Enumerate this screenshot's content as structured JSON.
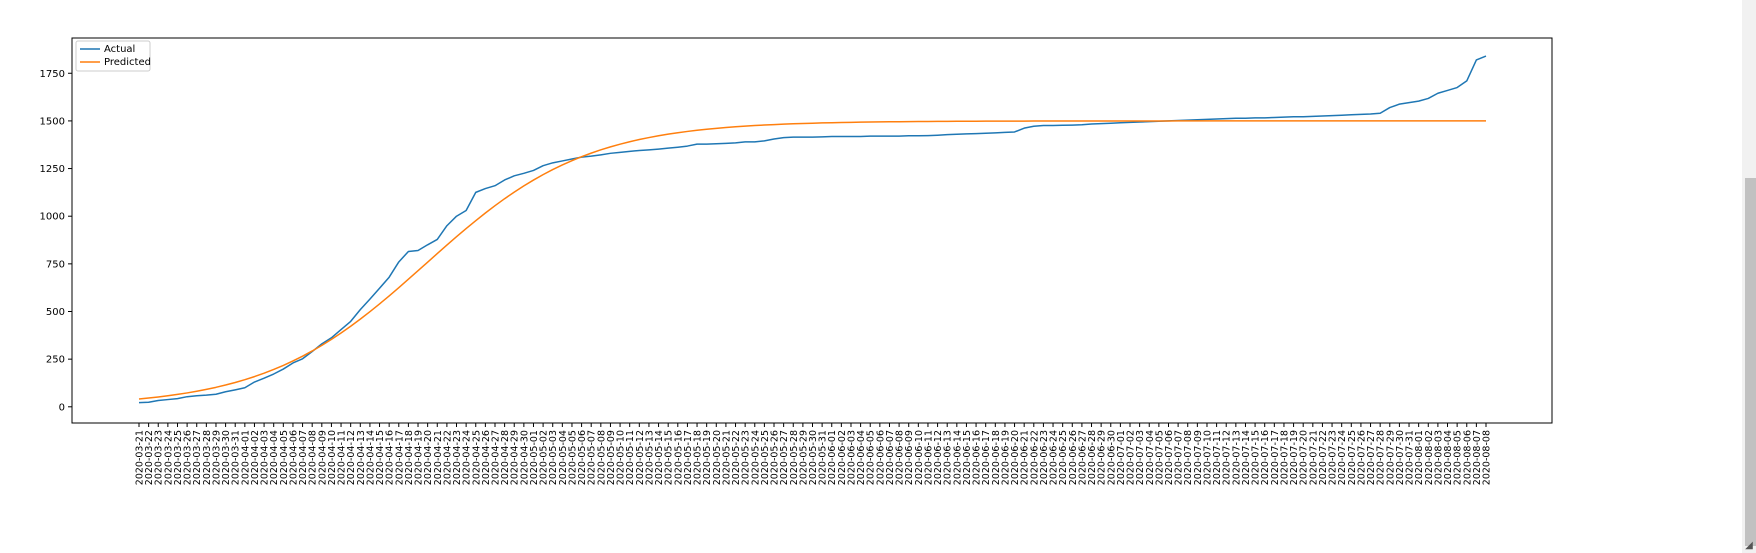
{
  "chart_data": {
    "type": "line",
    "title": "",
    "xlabel": "",
    "ylabel": "",
    "x_start": "2020-03-21",
    "x_end": "2020-08-08",
    "x_tick_labels": [
      "2020-03-21",
      "2020-03-22",
      "2020-03-23",
      "2020-03-24",
      "2020-03-25",
      "2020-03-26",
      "2020-03-27",
      "2020-03-28",
      "2020-03-29",
      "2020-03-30",
      "2020-03-31",
      "2020-04-01",
      "2020-04-02",
      "2020-04-03",
      "2020-04-04",
      "2020-04-05",
      "2020-04-06",
      "2020-04-07",
      "2020-04-08",
      "2020-04-09",
      "2020-04-10",
      "2020-04-11",
      "2020-04-12",
      "2020-04-13",
      "2020-04-14",
      "2020-04-15",
      "2020-04-16",
      "2020-04-17",
      "2020-04-18",
      "2020-04-19",
      "2020-04-20",
      "2020-04-21",
      "2020-04-22",
      "2020-04-23",
      "2020-04-24",
      "2020-04-25",
      "2020-04-26",
      "2020-04-27",
      "2020-04-28",
      "2020-04-29",
      "2020-04-30",
      "2020-05-01",
      "2020-05-02",
      "2020-05-03",
      "2020-05-04",
      "2020-05-05",
      "2020-05-06",
      "2020-05-07",
      "2020-05-08",
      "2020-05-09",
      "2020-05-10",
      "2020-05-11",
      "2020-05-12",
      "2020-05-13",
      "2020-05-14",
      "2020-05-15",
      "2020-05-16",
      "2020-05-17",
      "2020-05-18",
      "2020-05-19",
      "2020-05-20",
      "2020-05-21",
      "2020-05-22",
      "2020-05-23",
      "2020-05-24",
      "2020-05-25",
      "2020-05-26",
      "2020-05-27",
      "2020-05-28",
      "2020-05-29",
      "2020-05-30",
      "2020-05-31",
      "2020-06-01",
      "2020-06-02",
      "2020-06-03",
      "2020-06-04",
      "2020-06-05",
      "2020-06-06",
      "2020-06-07",
      "2020-06-08",
      "2020-06-09",
      "2020-06-10",
      "2020-06-11",
      "2020-06-12",
      "2020-06-13",
      "2020-06-14",
      "2020-06-15",
      "2020-06-16",
      "2020-06-17",
      "2020-06-18",
      "2020-06-19",
      "2020-06-20",
      "2020-06-21",
      "2020-06-22",
      "2020-06-23",
      "2020-06-24",
      "2020-06-25",
      "2020-06-26",
      "2020-06-27",
      "2020-06-28",
      "2020-06-29",
      "2020-06-30",
      "2020-07-01",
      "2020-07-02",
      "2020-07-03",
      "2020-07-04",
      "2020-07-05",
      "2020-07-06",
      "2020-07-07",
      "2020-07-08",
      "2020-07-09",
      "2020-07-10",
      "2020-07-11",
      "2020-07-12",
      "2020-07-13",
      "2020-07-14",
      "2020-07-15",
      "2020-07-16",
      "2020-07-17",
      "2020-07-18",
      "2020-07-19",
      "2020-07-20",
      "2020-07-21",
      "2020-07-22",
      "2020-07-23",
      "2020-07-24",
      "2020-07-25",
      "2020-07-26",
      "2020-07-27",
      "2020-07-28",
      "2020-07-29",
      "2020-07-30",
      "2020-07-31",
      "2020-08-01",
      "2020-08-02",
      "2020-08-03",
      "2020-08-04",
      "2020-08-05",
      "2020-08-06",
      "2020-08-07",
      "2020-08-08"
    ],
    "ylim": [
      -85,
      1935
    ],
    "y_ticks": [
      0,
      250,
      500,
      750,
      1000,
      1250,
      1500,
      1750
    ],
    "grid": false,
    "legend_position": "upper-left",
    "series": [
      {
        "name": "Actual",
        "color": "#1f77b4",
        "values": [
          22,
          24,
          33,
          38,
          43,
          53,
          58,
          61,
          66,
          79,
          89,
          100,
          130,
          150,
          172,
          198,
          230,
          252,
          290,
          330,
          362,
          405,
          448,
          510,
          565,
          622,
          680,
          760,
          815,
          820,
          850,
          878,
          950,
          1000,
          1030,
          1125,
          1145,
          1160,
          1190,
          1212,
          1225,
          1240,
          1265,
          1280,
          1290,
          1300,
          1310,
          1315,
          1322,
          1330,
          1335,
          1340,
          1345,
          1348,
          1352,
          1357,
          1362,
          1368,
          1378,
          1378,
          1380,
          1382,
          1385,
          1390,
          1390,
          1395,
          1405,
          1412,
          1415,
          1415,
          1415,
          1416,
          1418,
          1418,
          1418,
          1418,
          1420,
          1420,
          1420,
          1420,
          1422,
          1422,
          1423,
          1425,
          1428,
          1430,
          1432,
          1433,
          1435,
          1437,
          1440,
          1442,
          1462,
          1472,
          1476,
          1476,
          1477,
          1478,
          1480,
          1484,
          1486,
          1488,
          1490,
          1492,
          1494,
          1496,
          1498,
          1500,
          1502,
          1504,
          1506,
          1508,
          1510,
          1512,
          1514,
          1514,
          1516,
          1516,
          1518,
          1520,
          1522,
          1522,
          1524,
          1526,
          1528,
          1530,
          1532,
          1534,
          1536,
          1540,
          1570,
          1588,
          1596,
          1604,
          1618,
          1645,
          1660,
          1675,
          1710,
          1820,
          1840
        ]
      },
      {
        "name": "Predicted",
        "color": "#ff7f0e",
        "logistic": {
          "L": 1500,
          "k": 0.12,
          "x0": 29.8
        }
      }
    ]
  },
  "scroll": {
    "grip_glyph": "◢"
  }
}
